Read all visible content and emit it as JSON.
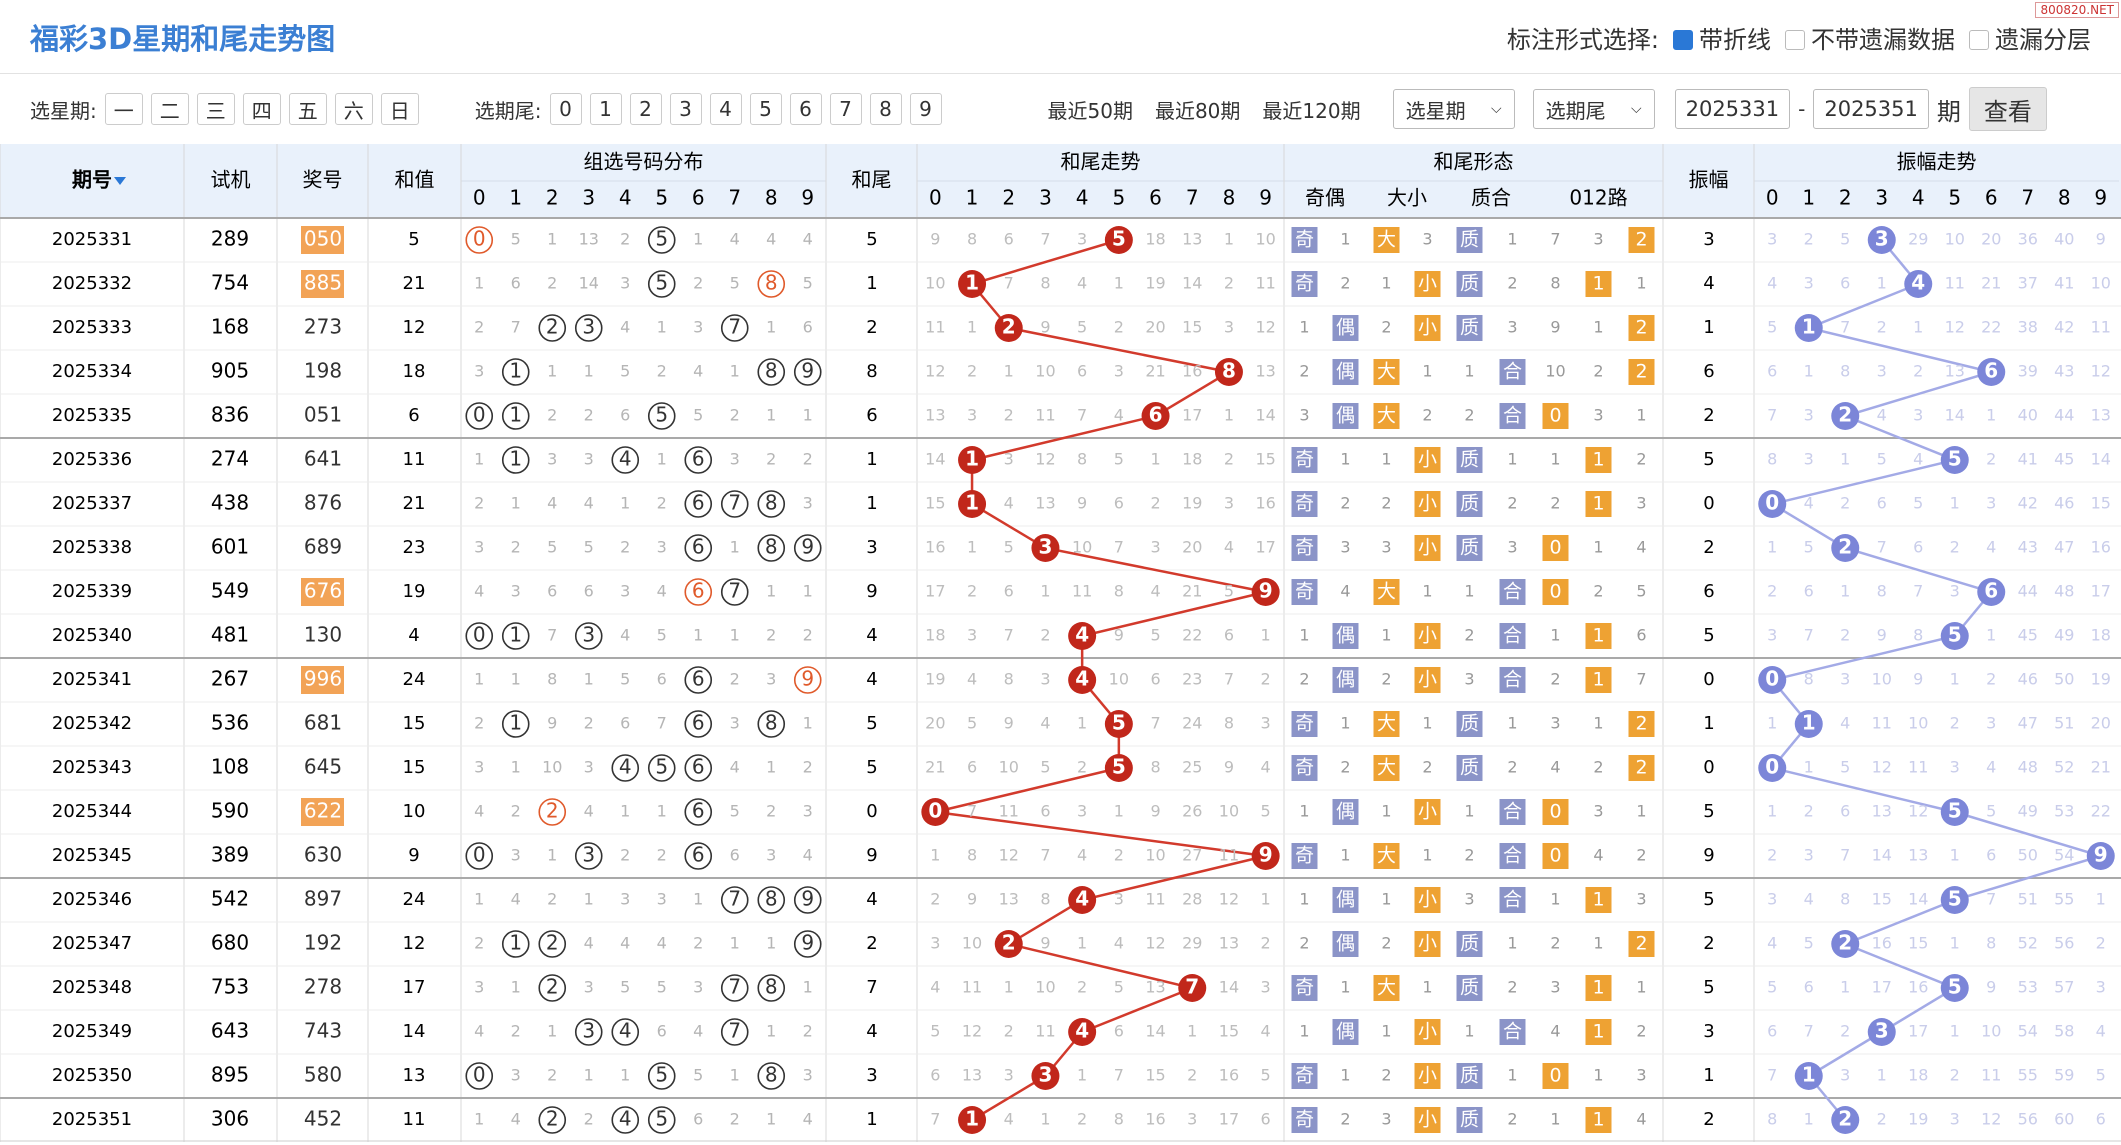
{
  "header": {
    "title": "福彩3D星期和尾走势图",
    "mark_label": "标注形式选择:",
    "options": [
      {
        "label": "带折线",
        "checked": true
      },
      {
        "label": "不带遗漏数据",
        "checked": false
      },
      {
        "label": "遗漏分层",
        "checked": false
      }
    ],
    "watermark": "800820.NET"
  },
  "filters": {
    "weekday_label": "选星期:",
    "weekdays": [
      "一",
      "二",
      "三",
      "四",
      "五",
      "六",
      "日"
    ],
    "tail_label": "选期尾:",
    "tails": [
      0,
      1,
      2,
      3,
      4,
      5,
      6,
      7,
      8,
      9
    ],
    "recent": [
      "最近50期",
      "最近80期",
      "最近120期"
    ],
    "selects": [
      "选星期",
      "选期尾"
    ],
    "from": "2025331",
    "dash": "-",
    "to": "2025351",
    "unit": "期",
    "button": "查看"
  },
  "table": {
    "columns": {
      "period": "期号",
      "test": "试机",
      "prize": "奖号",
      "sum": "和值",
      "dist": "组选号码分布",
      "tail": "和尾",
      "trend": "和尾走势",
      "form": "和尾形态",
      "amp": "振幅",
      "amp_trend": "振幅走势"
    },
    "form_groups": [
      "奇偶",
      "大小",
      "质合",
      "012路"
    ],
    "digits": [
      0,
      1,
      2,
      3,
      4,
      5,
      6,
      7,
      8,
      9
    ],
    "rows": [
      {
        "period": 2025331,
        "test": "289",
        "prize": "050",
        "sum": 5,
        "dist": [
          0,
          5,
          1,
          13,
          2,
          5,
          1,
          4,
          4,
          4
        ],
        "tail": 5,
        "trend": [
          9,
          8,
          6,
          7,
          3,
          5,
          18,
          13,
          1,
          10
        ],
        "form": [
          "奇",
          1,
          "大",
          3,
          "质",
          1,
          7,
          3,
          2
        ],
        "amp": 3,
        "amp_trend": [
          3,
          2,
          5,
          3,
          29,
          10,
          20,
          36,
          40,
          9
        ]
      },
      {
        "period": 2025332,
        "test": "754",
        "prize": "885",
        "sum": 21,
        "dist": [
          1,
          6,
          2,
          14,
          3,
          5,
          2,
          5,
          8,
          5
        ],
        "tail": 1,
        "trend": [
          10,
          1,
          7,
          8,
          4,
          1,
          19,
          14,
          2,
          11
        ],
        "form": [
          "奇",
          2,
          1,
          "小",
          "质",
          2,
          8,
          1,
          1
        ],
        "amp": 4,
        "amp_trend": [
          4,
          3,
          6,
          1,
          4,
          11,
          21,
          37,
          41,
          10
        ]
      },
      {
        "period": 2025333,
        "test": "168",
        "prize": "273",
        "sum": 12,
        "dist": [
          2,
          7,
          2,
          3,
          4,
          1,
          3,
          7,
          1,
          6
        ],
        "tail": 2,
        "trend": [
          11,
          1,
          2,
          9,
          5,
          2,
          20,
          15,
          3,
          12
        ],
        "form": [
          1,
          "偶",
          2,
          "小",
          "质",
          3,
          9,
          1,
          2
        ],
        "amp": 1,
        "amp_trend": [
          5,
          1,
          7,
          2,
          1,
          12,
          22,
          38,
          42,
          11
        ]
      },
      {
        "period": 2025334,
        "test": "905",
        "prize": "198",
        "sum": 18,
        "dist": [
          3,
          1,
          1,
          1,
          5,
          2,
          4,
          1,
          8,
          9
        ],
        "tail": 8,
        "trend": [
          12,
          2,
          1,
          10,
          6,
          3,
          21,
          16,
          8,
          13
        ],
        "form": [
          2,
          "偶",
          "大",
          1,
          1,
          "合",
          10,
          2,
          2
        ],
        "amp": 6,
        "amp_trend": [
          6,
          1,
          8,
          3,
          2,
          13,
          6,
          39,
          43,
          12
        ]
      },
      {
        "period": 2025335,
        "test": "836",
        "prize": "051",
        "sum": 6,
        "dist": [
          0,
          1,
          2,
          2,
          6,
          5,
          5,
          2,
          1,
          1
        ],
        "tail": 6,
        "trend": [
          13,
          3,
          2,
          11,
          7,
          4,
          6,
          17,
          1,
          14
        ],
        "form": [
          3,
          "偶",
          "大",
          2,
          2,
          "合",
          0,
          3,
          1
        ],
        "amp": 2,
        "amp_trend": [
          7,
          3,
          2,
          4,
          3,
          14,
          1,
          40,
          44,
          13
        ]
      },
      {
        "period": 2025336,
        "test": "274",
        "prize": "641",
        "sum": 11,
        "dist": [
          1,
          1,
          3,
          3,
          4,
          1,
          6,
          3,
          2,
          2
        ],
        "tail": 1,
        "trend": [
          14,
          1,
          3,
          12,
          8,
          5,
          1,
          18,
          2,
          15
        ],
        "form": [
          "奇",
          1,
          1,
          "小",
          "质",
          1,
          1,
          1,
          2
        ],
        "amp": 5,
        "amp_trend": [
          8,
          3,
          1,
          5,
          4,
          5,
          2,
          41,
          45,
          14
        ]
      },
      {
        "period": 2025337,
        "test": "438",
        "prize": "876",
        "sum": 21,
        "dist": [
          2,
          1,
          4,
          4,
          1,
          2,
          6,
          7,
          8,
          3
        ],
        "tail": 1,
        "trend": [
          15,
          1,
          4,
          13,
          9,
          6,
          2,
          19,
          3,
          16
        ],
        "form": [
          "奇",
          2,
          2,
          "小",
          "质",
          2,
          2,
          1,
          3
        ],
        "amp": 0,
        "amp_trend": [
          0,
          4,
          2,
          6,
          5,
          1,
          3,
          42,
          46,
          15
        ]
      },
      {
        "period": 2025338,
        "test": "601",
        "prize": "689",
        "sum": 23,
        "dist": [
          3,
          2,
          5,
          5,
          2,
          3,
          6,
          1,
          8,
          9
        ],
        "tail": 3,
        "trend": [
          16,
          1,
          5,
          3,
          10,
          7,
          3,
          20,
          4,
          17
        ],
        "form": [
          "奇",
          3,
          3,
          "小",
          "质",
          3,
          0,
          1,
          4
        ],
        "amp": 2,
        "amp_trend": [
          1,
          5,
          2,
          7,
          6,
          2,
          4,
          43,
          47,
          16
        ]
      },
      {
        "period": 2025339,
        "test": "549",
        "prize": "676",
        "sum": 19,
        "dist": [
          4,
          3,
          6,
          6,
          3,
          4,
          6,
          7,
          1,
          1
        ],
        "tail": 9,
        "trend": [
          17,
          2,
          6,
          1,
          11,
          8,
          4,
          21,
          5,
          9
        ],
        "form": [
          "奇",
          4,
          "大",
          1,
          1,
          "合",
          0,
          2,
          5
        ],
        "amp": 6,
        "amp_trend": [
          2,
          6,
          1,
          8,
          7,
          3,
          6,
          44,
          48,
          17
        ]
      },
      {
        "period": 2025340,
        "test": "481",
        "prize": "130",
        "sum": 4,
        "dist": [
          0,
          1,
          7,
          3,
          4,
          5,
          1,
          1,
          2,
          2
        ],
        "tail": 4,
        "trend": [
          18,
          3,
          7,
          2,
          4,
          9,
          5,
          22,
          6,
          1
        ],
        "form": [
          1,
          "偶",
          1,
          "小",
          2,
          "合",
          1,
          1,
          6
        ],
        "amp": 5,
        "amp_trend": [
          3,
          7,
          2,
          9,
          8,
          5,
          1,
          45,
          49,
          18
        ]
      },
      {
        "period": 2025341,
        "test": "267",
        "prize": "996",
        "sum": 24,
        "dist": [
          1,
          1,
          8,
          1,
          5,
          6,
          6,
          2,
          3,
          9
        ],
        "tail": 4,
        "trend": [
          19,
          4,
          8,
          3,
          4,
          10,
          6,
          23,
          7,
          2
        ],
        "form": [
          2,
          "偶",
          2,
          "小",
          3,
          "合",
          2,
          1,
          7
        ],
        "amp": 0,
        "amp_trend": [
          0,
          8,
          3,
          10,
          9,
          1,
          2,
          46,
          50,
          19
        ]
      },
      {
        "period": 2025342,
        "test": "536",
        "prize": "681",
        "sum": 15,
        "dist": [
          2,
          1,
          9,
          2,
          6,
          7,
          6,
          3,
          8,
          1
        ],
        "tail": 5,
        "trend": [
          20,
          5,
          9,
          4,
          1,
          5,
          7,
          24,
          8,
          3
        ],
        "form": [
          "奇",
          1,
          "大",
          1,
          "质",
          1,
          3,
          1,
          2
        ],
        "amp": 1,
        "amp_trend": [
          1,
          1,
          4,
          11,
          10,
          2,
          3,
          47,
          51,
          20
        ]
      },
      {
        "period": 2025343,
        "test": "108",
        "prize": "645",
        "sum": 15,
        "dist": [
          3,
          1,
          10,
          3,
          4,
          5,
          6,
          4,
          1,
          2
        ],
        "tail": 5,
        "trend": [
          21,
          6,
          10,
          5,
          2,
          5,
          8,
          25,
          9,
          4
        ],
        "form": [
          "奇",
          2,
          "大",
          2,
          "质",
          2,
          4,
          2,
          2
        ],
        "amp": 0,
        "amp_trend": [
          0,
          1,
          5,
          12,
          11,
          3,
          4,
          48,
          52,
          21
        ]
      },
      {
        "period": 2025344,
        "test": "590",
        "prize": "622",
        "sum": 10,
        "dist": [
          4,
          2,
          2,
          4,
          1,
          1,
          6,
          5,
          2,
          3
        ],
        "tail": 0,
        "trend": [
          0,
          7,
          11,
          6,
          3,
          1,
          9,
          26,
          10,
          5
        ],
        "form": [
          1,
          "偶",
          1,
          "小",
          1,
          "合",
          0,
          3,
          1
        ],
        "amp": 5,
        "amp_trend": [
          1,
          2,
          6,
          13,
          12,
          5,
          5,
          49,
          53,
          22
        ]
      },
      {
        "period": 2025345,
        "test": "389",
        "prize": "630",
        "sum": 9,
        "dist": [
          0,
          3,
          1,
          3,
          2,
          2,
          6,
          6,
          3,
          4
        ],
        "tail": 9,
        "trend": [
          1,
          8,
          12,
          7,
          4,
          2,
          10,
          27,
          11,
          9
        ],
        "form": [
          "奇",
          1,
          "大",
          1,
          2,
          "合",
          0,
          4,
          2
        ],
        "amp": 9,
        "amp_trend": [
          2,
          3,
          7,
          14,
          13,
          1,
          6,
          50,
          54,
          9
        ]
      },
      {
        "period": 2025346,
        "test": "542",
        "prize": "897",
        "sum": 24,
        "dist": [
          1,
          4,
          2,
          1,
          3,
          3,
          1,
          7,
          8,
          9
        ],
        "tail": 4,
        "trend": [
          2,
          9,
          13,
          8,
          4,
          3,
          11,
          28,
          12,
          1
        ],
        "form": [
          1,
          "偶",
          1,
          "小",
          3,
          "合",
          1,
          1,
          3
        ],
        "amp": 5,
        "amp_trend": [
          3,
          4,
          8,
          15,
          14,
          5,
          7,
          51,
          55,
          1
        ]
      },
      {
        "period": 2025347,
        "test": "680",
        "prize": "192",
        "sum": 12,
        "dist": [
          2,
          1,
          2,
          4,
          4,
          4,
          2,
          1,
          1,
          9
        ],
        "tail": 2,
        "trend": [
          3,
          10,
          2,
          9,
          1,
          4,
          12,
          29,
          13,
          2
        ],
        "form": [
          2,
          "偶",
          2,
          "小",
          "质",
          1,
          2,
          1,
          2
        ],
        "amp": 2,
        "amp_trend": [
          4,
          5,
          2,
          16,
          15,
          1,
          8,
          52,
          56,
          2
        ]
      },
      {
        "period": 2025348,
        "test": "753",
        "prize": "278",
        "sum": 17,
        "dist": [
          3,
          1,
          2,
          3,
          5,
          5,
          3,
          7,
          8,
          1
        ],
        "tail": 7,
        "trend": [
          4,
          11,
          1,
          10,
          2,
          5,
          13,
          7,
          14,
          3
        ],
        "form": [
          "奇",
          1,
          "大",
          1,
          "质",
          2,
          3,
          1,
          1
        ],
        "amp": 5,
        "amp_trend": [
          5,
          6,
          1,
          17,
          16,
          5,
          9,
          53,
          57,
          3
        ]
      },
      {
        "period": 2025349,
        "test": "643",
        "prize": "743",
        "sum": 14,
        "dist": [
          4,
          2,
          1,
          3,
          4,
          6,
          4,
          7,
          1,
          2
        ],
        "tail": 4,
        "trend": [
          5,
          12,
          2,
          11,
          4,
          6,
          14,
          1,
          15,
          4
        ],
        "form": [
          1,
          "偶",
          1,
          "小",
          1,
          "合",
          4,
          1,
          2
        ],
        "amp": 3,
        "amp_trend": [
          6,
          7,
          2,
          3,
          17,
          1,
          10,
          54,
          58,
          4
        ]
      },
      {
        "period": 2025350,
        "test": "895",
        "prize": "580",
        "sum": 13,
        "dist": [
          0,
          3,
          2,
          1,
          1,
          5,
          5,
          1,
          8,
          3
        ],
        "tail": 3,
        "trend": [
          6,
          13,
          3,
          3,
          1,
          7,
          15,
          2,
          16,
          5
        ],
        "form": [
          "奇",
          1,
          2,
          "小",
          "质",
          1,
          0,
          1,
          3
        ],
        "amp": 1,
        "amp_trend": [
          7,
          1,
          3,
          1,
          18,
          2,
          11,
          55,
          59,
          5
        ]
      },
      {
        "period": 2025351,
        "test": "306",
        "prize": "452",
        "sum": 11,
        "dist": [
          1,
          4,
          2,
          2,
          4,
          5,
          6,
          2,
          1,
          4
        ],
        "tail": 1,
        "trend": [
          7,
          1,
          4,
          1,
          2,
          8,
          16,
          3,
          17,
          6
        ],
        "form": [
          "奇",
          2,
          3,
          "小",
          "质",
          2,
          1,
          1,
          4
        ],
        "amp": 2,
        "amp_trend": [
          8,
          1,
          2,
          2,
          19,
          3,
          12,
          56,
          60,
          6
        ]
      }
    ]
  }
}
